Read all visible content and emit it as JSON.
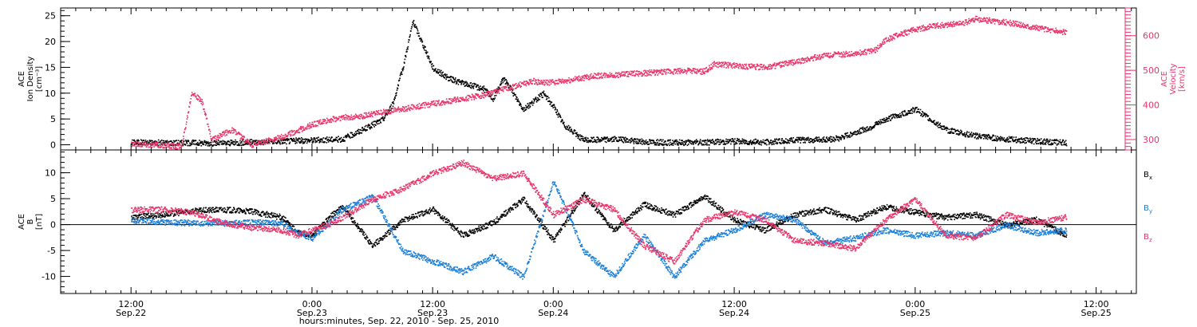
{
  "chart_data": [
    {
      "type": "scatter",
      "panel": "top",
      "left_axis": {
        "labels": [
          "ACE",
          "Ion Density",
          "[cm⁻³]"
        ],
        "ylim": [
          -1,
          26.5
        ],
        "ticks": [
          0,
          5,
          10,
          15,
          20,
          25
        ]
      },
      "right_axis": {
        "labels": [
          "ACE",
          "Velocity",
          "[km/s]"
        ],
        "ylim": [
          270,
          680
        ],
        "ticks": [
          300,
          400,
          500,
          600
        ]
      },
      "series": [
        {
          "key": "density",
          "axis": "left",
          "color": "#000000",
          "x": [
            0,
            6,
            12,
            18,
            24,
            30,
            36,
            42,
            46,
            50,
            52,
            54,
            56,
            60,
            63,
            66,
            70,
            72,
            74,
            78,
            82,
            84,
            86,
            90,
            96,
            102,
            108,
            114,
            120,
            126,
            132,
            138,
            141,
            144,
            147,
            150,
            156,
            162,
            168,
            174,
            180,
            186
          ],
          "y": [
            0.6,
            0.5,
            0.5,
            0.4,
            0.6,
            0.8,
            1.0,
            1.2,
            3.0,
            5.0,
            8.0,
            15.0,
            24.0,
            15.0,
            13.0,
            12.0,
            11.0,
            9.0,
            13.0,
            7.0,
            10.0,
            7.5,
            4.0,
            1.0,
            1.2,
            0.7,
            0.5,
            0.6,
            0.8,
            0.6,
            1.0,
            1.1,
            1.4,
            2.5,
            3.5,
            5.0,
            7.0,
            3.0,
            1.8,
            1.2,
            0.8,
            0.5
          ]
        },
        {
          "key": "velocity",
          "axis": "right",
          "color": "#e8356a",
          "x": [
            0,
            6,
            10,
            12,
            14,
            16,
            20,
            24,
            30,
            36,
            40,
            42,
            46,
            52,
            58,
            64,
            70,
            76,
            80,
            82,
            86,
            92,
            98,
            104,
            110,
            114,
            116,
            120,
            126,
            132,
            138,
            144,
            148,
            150,
            154,
            156,
            160,
            166,
            168,
            174,
            180,
            186
          ],
          "y": [
            290,
            285,
            282,
            440,
            410,
            300,
            330,
            285,
            310,
            345,
            360,
            365,
            370,
            385,
            400,
            415,
            430,
            455,
            470,
            465,
            470,
            485,
            490,
            495,
            500,
            498,
            520,
            515,
            510,
            525,
            545,
            550,
            560,
            590,
            610,
            620,
            630,
            640,
            650,
            640,
            625,
            610
          ]
        }
      ]
    },
    {
      "type": "scatter",
      "panel": "bottom",
      "left_axis": {
        "labels": [
          "ACE",
          "B",
          "[nT]"
        ],
        "ylim": [
          -13.3,
          14.4
        ],
        "ticks": [
          -10,
          -5,
          0,
          5,
          10
        ]
      },
      "series": [
        {
          "key": "Bx",
          "label_main": "B",
          "label_sub": "x",
          "color": "#000000",
          "x": [
            0,
            6,
            12,
            18,
            24,
            30,
            33,
            36,
            40,
            42,
            48,
            54,
            60,
            66,
            72,
            78,
            84,
            90,
            96,
            102,
            108,
            114,
            120,
            126,
            132,
            138,
            144,
            150,
            156,
            162,
            168,
            174,
            180,
            186
          ],
          "y": [
            1.5,
            2.0,
            2.7,
            3.0,
            2.6,
            1.5,
            -1.5,
            -2.0,
            2.0,
            3.5,
            -4.0,
            1.0,
            3.0,
            -2.0,
            0.5,
            5.0,
            -3.0,
            6.0,
            -1.0,
            4.0,
            2.0,
            5.5,
            1.0,
            -1.0,
            2.0,
            3.0,
            1.0,
            3.5,
            2.5,
            1.5,
            2.0,
            0.0,
            1.0,
            -2.0
          ]
        },
        {
          "key": "By",
          "label_main": "B",
          "label_sub": "y",
          "color": "#1a7fd8",
          "x": [
            0,
            6,
            12,
            18,
            24,
            30,
            33,
            36,
            40,
            42,
            48,
            54,
            60,
            66,
            72,
            78,
            84,
            90,
            96,
            102,
            108,
            114,
            120,
            126,
            132,
            138,
            144,
            150,
            156,
            162,
            168,
            174,
            180,
            186
          ],
          "y": [
            1.0,
            0.6,
            0.4,
            0.3,
            0.5,
            0.4,
            -1.5,
            -2.5,
            1.0,
            3.0,
            5.5,
            -5.0,
            -7.0,
            -9.0,
            -6.0,
            -10.0,
            8.5,
            -5.0,
            -10.0,
            -2.0,
            -10.0,
            -3.0,
            -1.0,
            2.0,
            1.0,
            -3.5,
            -2.5,
            -1.0,
            -2.0,
            -1.5,
            -2.0,
            0.0,
            -1.5,
            -1.0
          ]
        },
        {
          "key": "Bz",
          "label_main": "B",
          "label_sub": "z",
          "color": "#e8356a",
          "x": [
            0,
            6,
            12,
            18,
            24,
            30,
            33,
            36,
            40,
            42,
            48,
            54,
            60,
            66,
            72,
            78,
            84,
            90,
            96,
            102,
            108,
            114,
            120,
            126,
            132,
            138,
            144,
            150,
            156,
            162,
            168,
            174,
            180,
            186
          ],
          "y": [
            3.0,
            3.0,
            2.5,
            0.5,
            -0.5,
            -1.0,
            -2.0,
            -1.0,
            0.5,
            1.5,
            5.0,
            7.0,
            10.0,
            12.0,
            9.0,
            10.0,
            2.0,
            5.0,
            3.0,
            -4.0,
            -7.0,
            1.0,
            2.5,
            1.0,
            -3.0,
            -3.5,
            -4.5,
            1.0,
            5.0,
            -2.0,
            -2.5,
            2.0,
            0.5,
            1.5
          ]
        }
      ]
    }
  ],
  "x_axis": {
    "xlim": [
      -14,
      200
    ],
    "label": "hours:minutes, Sep. 22, 2010 - Sep. 25, 2010",
    "ticks": [
      {
        "x": 0,
        "line1": "12:00",
        "line2": "Sep.22"
      },
      {
        "x": 36,
        "line1": "0:00",
        "line2": "Sep.23"
      },
      {
        "x": 60,
        "line1": "12:00",
        "line2": "Sep.23"
      },
      {
        "x": 84,
        "line1": "0:00",
        "line2": "Sep.24"
      },
      {
        "x": 120,
        "line1": "12:00",
        "line2": "Sep.24"
      },
      {
        "x": 156,
        "line1": "0:00",
        "line2": "Sep.25"
      },
      {
        "x": 192,
        "line1": "12:00",
        "line2": "Sep.25"
      }
    ]
  },
  "grid": false,
  "legend_position": "right"
}
